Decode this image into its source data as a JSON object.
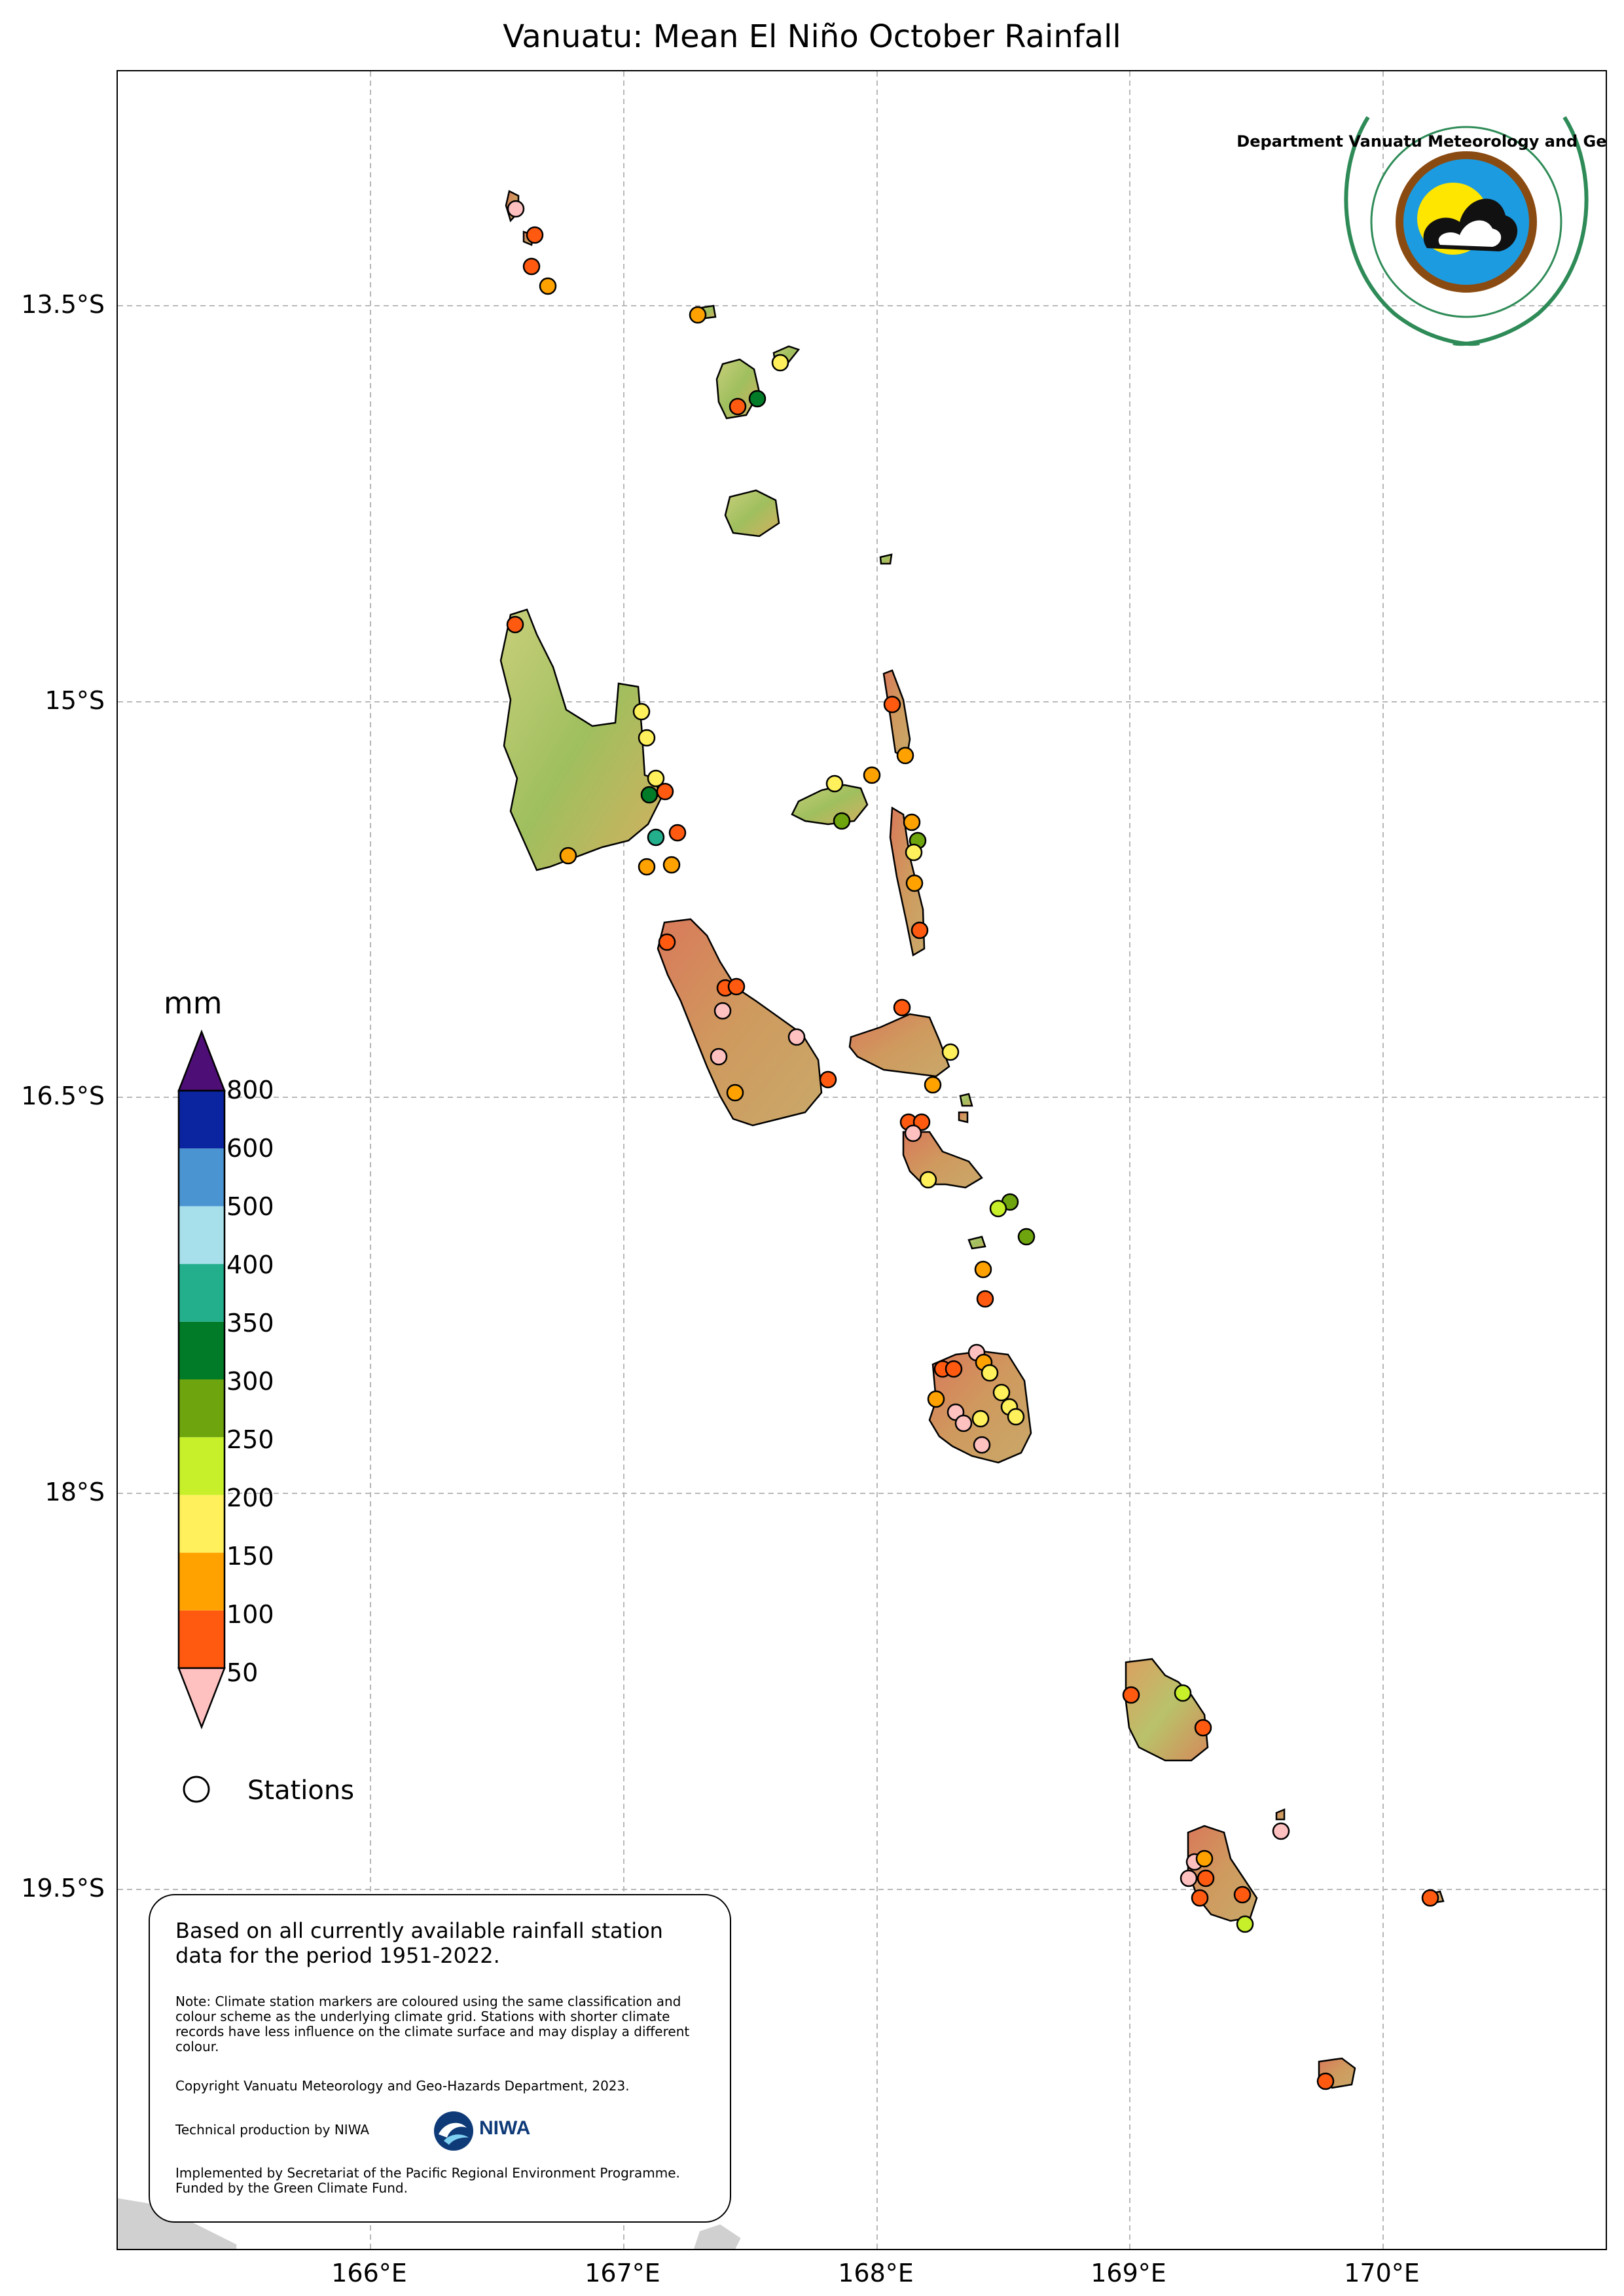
{
  "title": "Vanuatu: Mean El Niño October Rainfall",
  "axes": {
    "latitude_labels": [
      "13.5°S",
      "15°S",
      "16.5°S",
      "18°S",
      "19.5°S"
    ],
    "longitude_labels": [
      "166°E",
      "167°E",
      "168°E",
      "169°E",
      "170°E"
    ],
    "grid": true
  },
  "colorbar": {
    "title": "mm",
    "ticks": [
      "50",
      "100",
      "150",
      "200",
      "250",
      "300",
      "350",
      "400",
      "500",
      "600",
      "800"
    ],
    "colors": [
      "#ffc0c0",
      "#ff5a10",
      "#ffa200",
      "#fff05c",
      "#c7ef2a",
      "#6ea40e",
      "#017b27",
      "#23ae8c",
      "#a7e0ea",
      "#4a94d1",
      "#0b24a0",
      "#4d0e76"
    ]
  },
  "legend": {
    "stations_label": "Stations"
  },
  "logo": {
    "text": "Department Vanuatu Meteorology and Geo-Hazards"
  },
  "note": {
    "main": "Based on all currently available rainfall station data for the period 1951-2022.",
    "detail": "Note: Climate station markers are coloured using the same classification and colour scheme as the underlying climate grid. Stations with shorter climate records have less influence on the climate surface and may display a different colour.",
    "copyright": "Copyright Vanuatu Meteorology and Geo-Hazards Department, 2023.",
    "technical": "Technical production by NIWA",
    "niwa_logo_text": "NIWA",
    "funding": "Implemented by Secretariat of the Pacific Regional Environment Programme. Funded by the Green Climate Fund."
  }
}
